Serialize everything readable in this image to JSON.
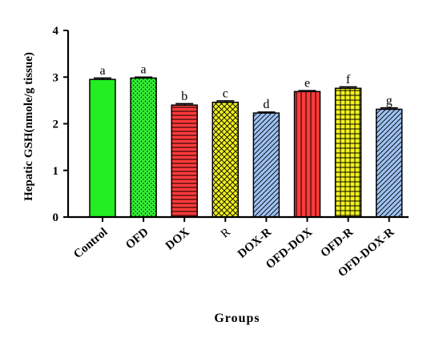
{
  "chart_data": {
    "type": "bar",
    "categories": [
      "Control",
      "OFD",
      "DOX",
      "R",
      "DOX-R",
      "OFD-DOX",
      "OFD-R",
      "OFD-DOX-R"
    ],
    "values": [
      2.95,
      2.98,
      2.4,
      2.46,
      2.23,
      2.69,
      2.76,
      2.31
    ],
    "errors": [
      0.03,
      0.02,
      0.03,
      0.03,
      0.02,
      0.02,
      0.03,
      0.03
    ],
    "significance": [
      "a",
      "a",
      "b",
      "c",
      "d",
      "e",
      "f",
      "g"
    ],
    "xlabel": "Groups",
    "ylabel": "Hepatic GSH(nmole/g tissue)",
    "ylim": [
      0,
      4
    ],
    "yticks": [
      0,
      1,
      2,
      3,
      4
    ],
    "grid": false,
    "bar_colors": [
      "#22ee22",
      "#33ee33",
      "#ff3a3a",
      "#f2f21e",
      "#9ec2f2",
      "#ff3a3a",
      "#f2f21e",
      "#9ec2f2"
    ],
    "bar_patterns": [
      "solid",
      "dots",
      "hlines",
      "crosshatch",
      "diagonal",
      "vlines",
      "grid",
      "diagonal"
    ]
  }
}
